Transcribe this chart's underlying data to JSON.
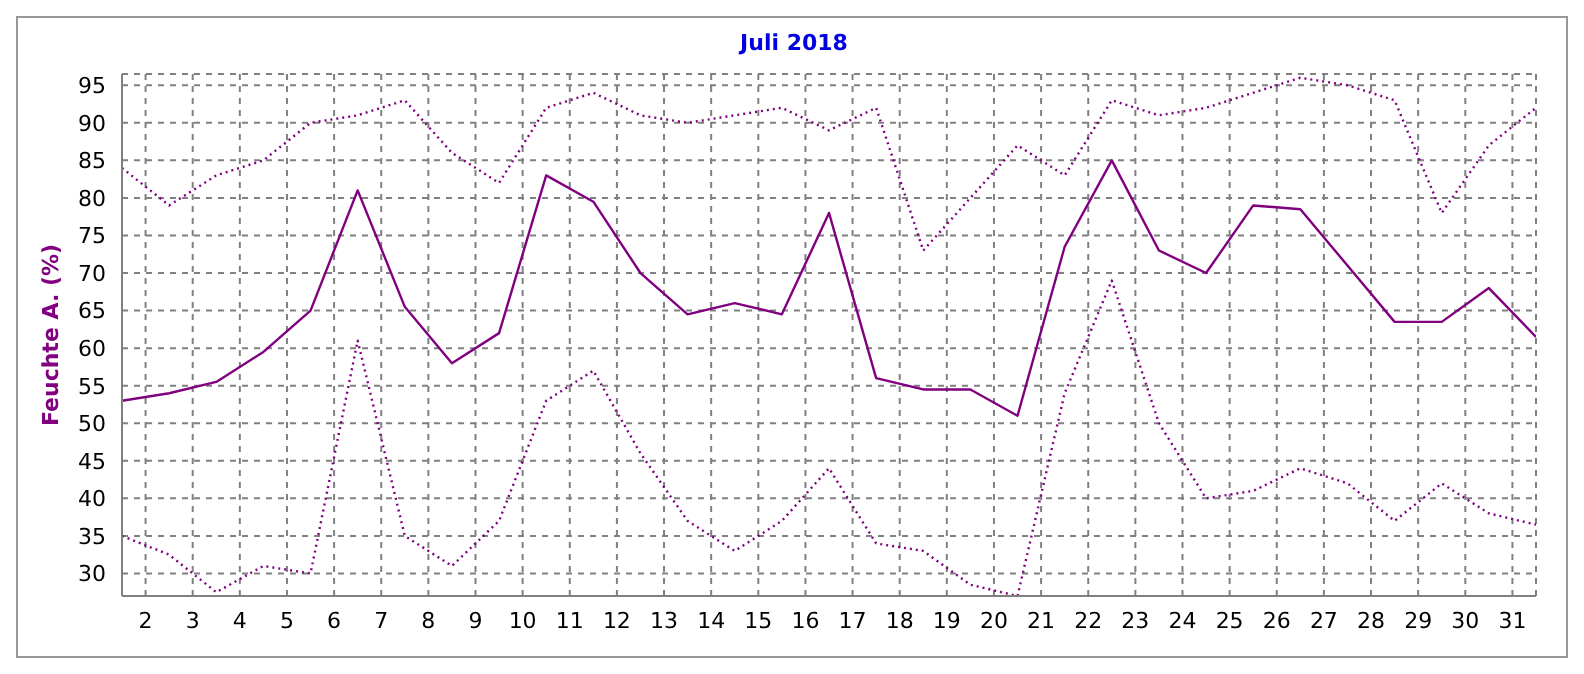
{
  "chart_data": {
    "type": "line",
    "title": "Juli 2018",
    "ylabel": "Feuchte A. (%)",
    "x": [
      1.5,
      2.5,
      3.5,
      4.5,
      5.5,
      6.5,
      7.5,
      8.5,
      9.5,
      10.5,
      11.5,
      12.5,
      13.5,
      14.5,
      15.5,
      16.5,
      17.5,
      18.5,
      19.5,
      20.5,
      21.5,
      22.5,
      23.5,
      24.5,
      25.5,
      26.5,
      27.5,
      28.5,
      29.5,
      30.5,
      31.5
    ],
    "series": [
      {
        "color": "#800080",
        "line_style": "dotted",
        "values": [
          84,
          79,
          83,
          85,
          90,
          91,
          93,
          86,
          82,
          92,
          94,
          91,
          90,
          91,
          92,
          89,
          92,
          73,
          80,
          87,
          83,
          93,
          91,
          92,
          94,
          96,
          95,
          93,
          78,
          87,
          92
        ]
      },
      {
        "color": "#800080",
        "line_style": "solid",
        "values": [
          53,
          54,
          55.5,
          59.5,
          65,
          81,
          65.5,
          58,
          62,
          83,
          79.5,
          70,
          64.5,
          66,
          64.5,
          78,
          56,
          54.5,
          54.5,
          51,
          73.5,
          85,
          73,
          70,
          79,
          78.5,
          71,
          63.5,
          63.5,
          68,
          61.5
        ]
      },
      {
        "color": "#800080",
        "line_style": "dotted",
        "values": [
          35,
          32.5,
          27.5,
          31,
          30,
          61,
          35,
          31,
          37,
          53,
          57,
          46,
          37,
          33,
          37,
          44,
          34,
          33,
          28.5,
          27,
          54,
          69,
          50,
          40,
          41,
          44,
          42,
          37,
          42,
          38,
          36.5
        ]
      }
    ],
    "xlim": [
      1.5,
      31.5
    ],
    "xticks": [
      2,
      3,
      4,
      5,
      6,
      7,
      8,
      9,
      10,
      11,
      12,
      13,
      14,
      15,
      16,
      17,
      18,
      19,
      20,
      21,
      22,
      23,
      24,
      25,
      26,
      27,
      28,
      29,
      30,
      31
    ],
    "ylim": [
      27,
      96.5
    ],
    "yticks": [
      30,
      35,
      40,
      45,
      50,
      55,
      60,
      65,
      70,
      75,
      80,
      85,
      90,
      95
    ],
    "grid": true,
    "legend": false,
    "marker": "none"
  }
}
